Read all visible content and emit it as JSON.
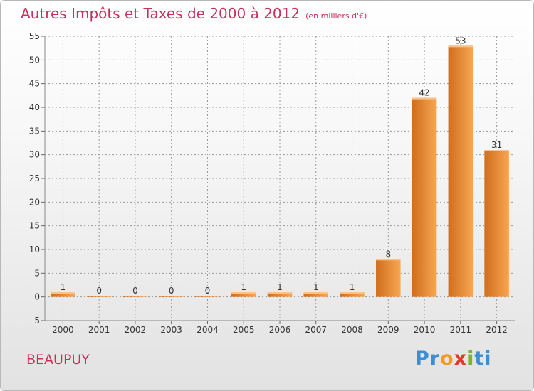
{
  "title": "Autres Impôts et Taxes de 2000 à 2012",
  "subtitle": "(en milliers d'€)",
  "place": "BEAUPUY",
  "logo": {
    "p1": "Pr",
    "p2": "o",
    "p3": "x",
    "p4": "i",
    "p5": "ti"
  },
  "colors": {
    "bar_light": "#f7a652",
    "bar_dark": "#d06e1c",
    "title": "#c8325a",
    "grid": "#999999"
  },
  "chart_data": {
    "type": "bar",
    "categories": [
      "2000",
      "2001",
      "2002",
      "2003",
      "2004",
      "2005",
      "2006",
      "2007",
      "2008",
      "2009",
      "2010",
      "2011",
      "2012"
    ],
    "values": [
      1,
      0,
      0,
      0,
      0,
      1,
      1,
      1,
      1,
      8,
      42,
      53,
      31
    ],
    "data_labels": [
      "1",
      "0",
      "0",
      "0",
      "0",
      "1",
      "1",
      "1",
      "1",
      "8",
      "42",
      "53",
      "31"
    ],
    "ylim": [
      -5,
      55
    ],
    "yticks": [
      -5,
      0,
      5,
      10,
      15,
      20,
      25,
      30,
      35,
      40,
      45,
      50,
      55
    ],
    "ytick_labels": [
      "-5",
      "0",
      "5",
      "10",
      "15",
      "20",
      "25",
      "30",
      "35",
      "40",
      "45",
      "50",
      "55"
    ],
    "grid": true,
    "xlabel": "",
    "ylabel": ""
  }
}
